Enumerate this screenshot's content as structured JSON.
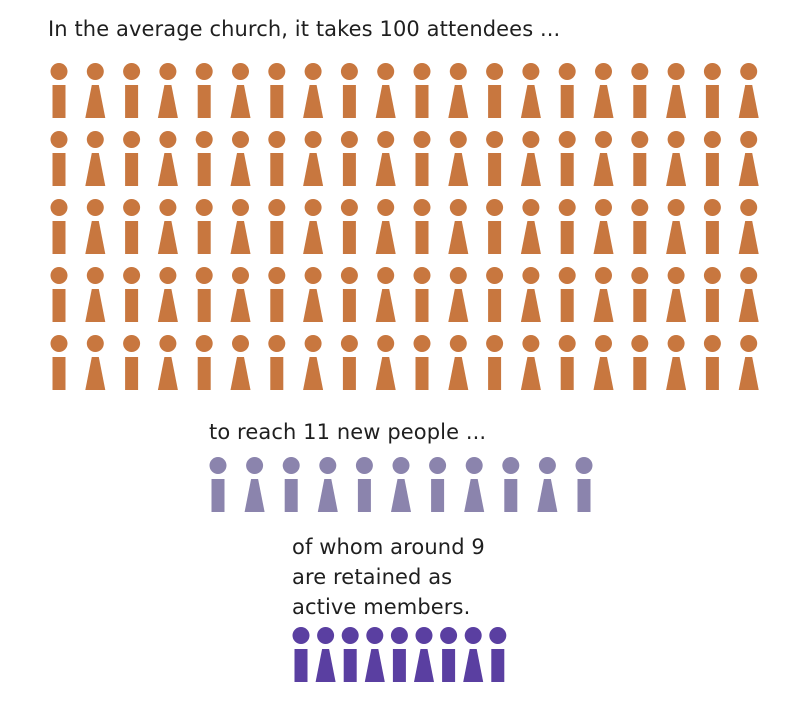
{
  "headline": "In the average church, it takes 100 attendees ...",
  "reach_text": "to reach 11 new people ...",
  "retained_lines": [
    "of whom around 9",
    "are retained as",
    "active members."
  ],
  "groups": {
    "attendees": {
      "count": 100,
      "color": "#c8773f"
    },
    "new_people": {
      "count": 11,
      "color": "#8b84ad"
    },
    "retained": {
      "count": 9,
      "color": "#5a3fa1"
    }
  },
  "icons": [
    "person-icon"
  ]
}
